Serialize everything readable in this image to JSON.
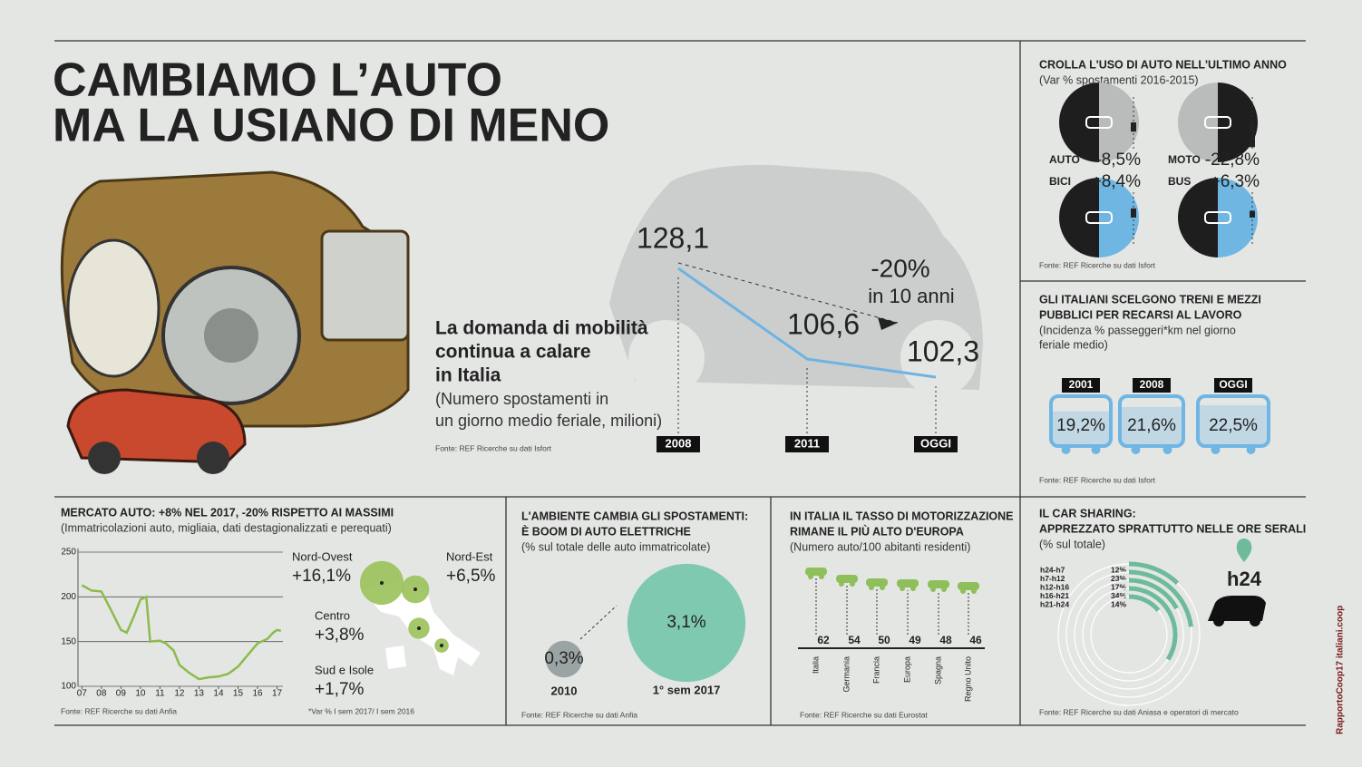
{
  "header": {
    "title_lines": [
      "CAMBIAMO L’AUTO",
      "MA LA USIANO DI MENO"
    ],
    "side_credit": "RapportoCoop17 italiani.coop"
  },
  "chart_data": [
    {
      "type": "line",
      "title_lines": [
        "La domanda di mobilità",
        "continua a calare",
        "in Italia"
      ],
      "subtitle_lines": [
        "(Numero spostamenti in",
        "un giorno medio feriale, milioni)"
      ],
      "categories": [
        "2008",
        "2011",
        "OGGI"
      ],
      "values": [
        128.1,
        106.6,
        102.3
      ],
      "value_labels": [
        "128,1",
        "106,6",
        "102,3"
      ],
      "color": "#6db3e3",
      "annotations": [
        "-20%",
        "in 10 anni"
      ],
      "source": "Fonte: REF Ricerche su dati Isfort"
    },
    {
      "type": "pie",
      "title": "CROLLA L'USO DI AUTO NELL'ULTIMO ANNO",
      "subtitle": "(Var % spostamenti 2016-2015)",
      "categories": [
        "AUTO",
        "MOTO",
        "BICI",
        "BUS"
      ],
      "values": [
        -8.5,
        -22.8,
        8.4,
        6.3
      ],
      "value_labels": [
        "-8,5%",
        "-22,8%",
        "+8,4%",
        "+6,3%"
      ],
      "colors": [
        [
          "#1e1e1e",
          "#b9bcbb"
        ],
        [
          "#b9bcbb",
          "#1e1e1e"
        ],
        [
          "#1e1e1e",
          "#6fb6e3"
        ],
        [
          "#1e1e1e",
          "#6fb6e3"
        ]
      ],
      "source": "Fonte: REF Ricerche su dati Isfort"
    },
    {
      "type": "bar",
      "title_lines": [
        "GLI ITALIANI SCELGONO TRENI E MEZZI",
        "PUBBLICI PER RECARSI AL LAVORO"
      ],
      "subtitle_lines": [
        "(Incidenza % passeggeri*km nel giorno",
        "feriale medio)"
      ],
      "categories": [
        "2001",
        "2008",
        "OGGI"
      ],
      "values": [
        19.2,
        21.6,
        22.5
      ],
      "value_labels": [
        "19,2%",
        "21,6%",
        "22,5%"
      ],
      "color": "#6fb6e3",
      "source": "Fonte: REF Ricerche su dati Isfort"
    },
    {
      "type": "line",
      "title": "MERCATO AUTO: +8% NEL 2017, -20% RISPETTO AI MASSIMI",
      "subtitle": "(Immatricolazioni auto, migliaia, dati destagionalizzati e perequati)",
      "x": [
        7.0,
        7.5,
        8.0,
        8.5,
        9.0,
        9.3,
        9.7,
        10.0,
        10.3,
        10.5,
        11.0,
        11.3,
        11.7,
        12.0,
        12.5,
        13.0,
        13.5,
        14.0,
        14.5,
        15.0,
        15.5,
        16.0,
        16.5,
        16.8,
        17.0,
        17.2
      ],
      "values": [
        213,
        207,
        206,
        185,
        163,
        160,
        180,
        197,
        200,
        150,
        151,
        148,
        140,
        124,
        115,
        108,
        110,
        111,
        114,
        122,
        135,
        148,
        153,
        160,
        163,
        162
      ],
      "xlim": [
        6.8,
        17.3
      ],
      "ylim": [
        100,
        250
      ],
      "xticks": [
        {
          "value": 7,
          "label": "07"
        },
        {
          "value": 8,
          "label": "08"
        },
        {
          "value": 9,
          "label": "09"
        },
        {
          "value": 10,
          "label": "10"
        },
        {
          "value": 11,
          "label": "11"
        },
        {
          "value": 12,
          "label": "12"
        },
        {
          "value": 13,
          "label": "13"
        },
        {
          "value": 14,
          "label": "14"
        },
        {
          "value": 15,
          "label": "15"
        },
        {
          "value": 16,
          "label": "16"
        },
        {
          "value": 17,
          "label": "17"
        }
      ],
      "yticks": [
        100,
        150,
        200,
        250
      ],
      "grid": true,
      "color": "#8dbb4a",
      "source": "Fonte: REF Ricerche su dati Anfia"
    },
    {
      "type": "bubble",
      "categories": [
        "Nord-Ovest",
        "Nord-Est",
        "Centro",
        "Sud e Isole"
      ],
      "values": [
        16.1,
        6.5,
        3.8,
        1.7
      ],
      "value_labels": [
        "+16,1%",
        "+6,5%",
        "+3,8%",
        "+1,7%"
      ],
      "color": "#9ac15a",
      "note": "*Var % I sem 2017/ I sem 2016"
    },
    {
      "type": "bubble",
      "title_lines": [
        "L'AMBIENTE CAMBIA GLI SPOSTAMENTI:",
        "È BOOM DI AUTO ELETTRICHE"
      ],
      "subtitle": "(% sul totale delle auto immatricolate)",
      "categories": [
        "2010",
        "1° sem 2017"
      ],
      "values": [
        0.3,
        3.1
      ],
      "value_labels": [
        "0,3%",
        "3,1%"
      ],
      "colors": [
        "#9ba4a4",
        "#7fc9b1"
      ],
      "source": "Fonte: REF Ricerche su dati Anfia"
    },
    {
      "type": "lollipop",
      "title_lines": [
        "IN ITALIA IL TASSO DI MOTORIZZAZIONE",
        "RIMANE IL PIÙ ALTO D'EUROPA"
      ],
      "subtitle": "(Numero auto/100 abitanti residenti)",
      "categories": [
        "Italia",
        "Germania",
        "Francia",
        "Europa",
        "Spagna",
        "Regno Unito"
      ],
      "values": [
        62,
        54,
        50,
        49,
        48,
        46
      ],
      "color": "#8fbf5a",
      "source": "Fonte: REF Ricerche su dati Eurostat"
    },
    {
      "type": "radial",
      "title_lines": [
        "IL CAR SHARING:",
        "APPREZZATO SPRATTUTTO NELLE ORE SERALI"
      ],
      "subtitle": "(% sul totale)",
      "categories": [
        "h24-h7",
        "h7-h12",
        "h12-h16",
        "h16-h21",
        "h21-h24"
      ],
      "values": [
        12,
        23,
        17,
        34,
        14
      ],
      "value_labels": [
        "12%",
        "23%",
        "17%",
        "34%",
        "14%"
      ],
      "label": "h24",
      "color": "#6dbb9b",
      "source": "Fonte: REF Ricerche su dati Aniasa e operatori di mercato"
    }
  ]
}
